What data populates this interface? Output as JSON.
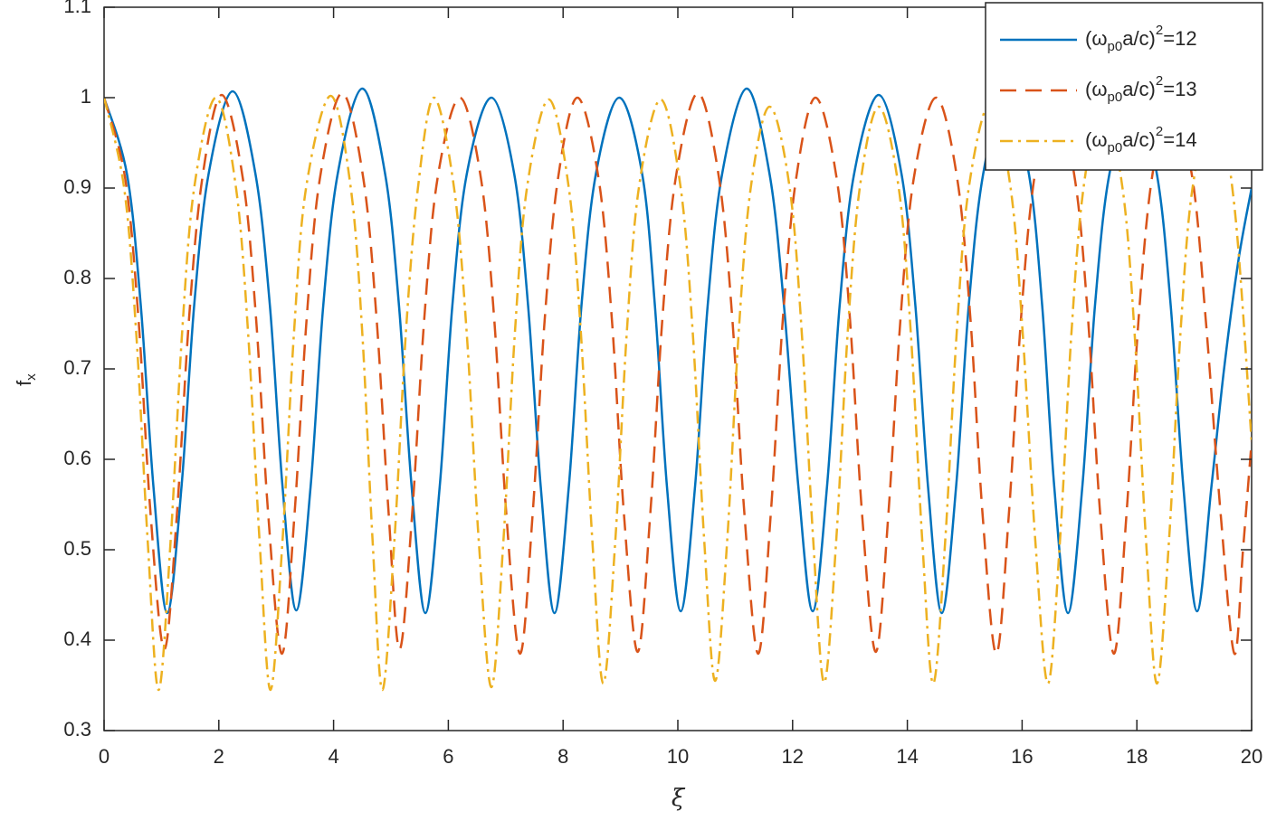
{
  "chart_data": {
    "type": "line",
    "xlabel": "ξ",
    "ylabel": {
      "base": "f",
      "sub": "x"
    },
    "xlim": [
      0,
      20
    ],
    "xticks": [
      0,
      2,
      4,
      6,
      8,
      10,
      12,
      14,
      16,
      18,
      20
    ],
    "ylim": [
      0.3,
      1.1
    ],
    "yticks": [
      0.3,
      0.4,
      0.5,
      0.6,
      0.7,
      0.8,
      0.9,
      1,
      1.1
    ],
    "grid": false,
    "legend": "top-right",
    "series": [
      {
        "name": {
          "open": "(ω",
          "sub": "p0",
          "mid": "a/c)",
          "sup": "2",
          "close": "=12"
        },
        "color": "#0072BD",
        "linestyle": "solid",
        "x": [
          0,
          0.4,
          0.64,
          0.86,
          1.1,
          1.35,
          1.57,
          1.82,
          2.24,
          2.64,
          2.89,
          3.11,
          3.35,
          3.6,
          3.82,
          4.07,
          4.5,
          4.9,
          5.14,
          5.36,
          5.6,
          5.85,
          6.07,
          6.32,
          6.75,
          7.15,
          7.39,
          7.61,
          7.85,
          8.1,
          8.32,
          8.57,
          8.98,
          9.38,
          9.6,
          9.81,
          10.05,
          10.3,
          10.52,
          10.77,
          11.2,
          11.6,
          11.85,
          12.1,
          12.35,
          12.6,
          12.82,
          13.07,
          13.5,
          13.9,
          14.14,
          14.36,
          14.6,
          14.85,
          15.07,
          15.32,
          15.72,
          16.12,
          16.35,
          16.56,
          16.8,
          17.05,
          17.27,
          17.52,
          17.95,
          18.35,
          18.59,
          18.81,
          19.05,
          19.3,
          19.52,
          19.77,
          20
        ],
        "values": [
          1,
          0.915,
          0.77,
          0.57,
          0.43,
          0.57,
          0.77,
          0.915,
          1.007,
          0.915,
          0.77,
          0.57,
          0.433,
          0.57,
          0.77,
          0.915,
          1.01,
          0.915,
          0.77,
          0.57,
          0.43,
          0.57,
          0.77,
          0.915,
          1.0,
          0.915,
          0.77,
          0.57,
          0.43,
          0.57,
          0.77,
          0.915,
          1.0,
          0.915,
          0.77,
          0.57,
          0.432,
          0.57,
          0.77,
          0.915,
          1.01,
          0.915,
          0.77,
          0.57,
          0.432,
          0.57,
          0.77,
          0.915,
          1.003,
          0.915,
          0.77,
          0.57,
          0.43,
          0.57,
          0.77,
          0.915,
          1.005,
          0.915,
          0.77,
          0.57,
          0.43,
          0.57,
          0.77,
          0.915,
          1.005,
          0.915,
          0.77,
          0.57,
          0.432,
          0.57,
          0.7,
          0.82,
          0.9
        ]
      },
      {
        "name": {
          "open": "(ω",
          "sub": "p0",
          "mid": "a/c)",
          "sup": "2",
          "close": "=13"
        },
        "color": "#D95319",
        "linestyle": "dashed",
        "x": [
          0,
          0.37,
          0.6,
          0.81,
          1.05,
          1.27,
          1.48,
          1.71,
          2.05,
          2.42,
          2.65,
          2.86,
          3.1,
          3.32,
          3.53,
          3.76,
          4.15,
          4.52,
          4.75,
          4.96,
          5.15,
          5.37,
          5.58,
          5.81,
          6.2,
          6.57,
          6.8,
          7.01,
          7.25,
          7.47,
          7.68,
          7.91,
          8.25,
          8.62,
          8.85,
          9.06,
          9.3,
          9.52,
          9.73,
          9.96,
          10.35,
          10.72,
          10.95,
          11.16,
          11.4,
          11.62,
          11.83,
          12.06,
          12.4,
          12.77,
          13.0,
          13.21,
          13.45,
          13.67,
          13.88,
          14.11,
          14.5,
          14.87,
          15.1,
          15.31,
          15.55,
          15.77,
          15.98,
          16.21,
          16.55,
          16.92,
          17.15,
          17.36,
          17.6,
          17.82,
          18.03,
          18.26,
          18.6,
          18.97,
          19.2,
          19.46,
          19.7,
          19.85,
          20
        ],
        "values": [
          1,
          0.91,
          0.755,
          0.54,
          0.39,
          0.54,
          0.755,
          0.91,
          1.003,
          0.91,
          0.755,
          0.54,
          0.385,
          0.54,
          0.755,
          0.91,
          1.005,
          0.91,
          0.755,
          0.54,
          0.39,
          0.54,
          0.755,
          0.91,
          1.0,
          0.91,
          0.755,
          0.54,
          0.385,
          0.54,
          0.755,
          0.91,
          1.0,
          0.91,
          0.755,
          0.54,
          0.387,
          0.54,
          0.755,
          0.91,
          1.005,
          0.91,
          0.755,
          0.54,
          0.385,
          0.54,
          0.755,
          0.91,
          1.0,
          0.91,
          0.755,
          0.54,
          0.387,
          0.54,
          0.755,
          0.91,
          1.0,
          0.91,
          0.755,
          0.54,
          0.385,
          0.54,
          0.755,
          0.91,
          1.0,
          0.91,
          0.755,
          0.54,
          0.385,
          0.54,
          0.755,
          0.91,
          1.0,
          0.91,
          0.755,
          0.54,
          0.385,
          0.5,
          0.62
        ]
      },
      {
        "name": {
          "open": "(ω",
          "sub": "p0",
          "mid": "a/c)",
          "sup": "2",
          "close": "=14"
        },
        "color": "#EDB120",
        "linestyle": "dashdot",
        "x": [
          0,
          0.35,
          0.56,
          0.76,
          0.95,
          1.16,
          1.36,
          1.57,
          1.95,
          2.3,
          2.51,
          2.71,
          2.9,
          3.11,
          3.31,
          3.52,
          3.95,
          4.3,
          4.5,
          4.68,
          4.85,
          5.06,
          5.26,
          5.47,
          5.75,
          6.1,
          6.32,
          6.53,
          6.75,
          6.96,
          7.16,
          7.37,
          7.75,
          8.1,
          8.31,
          8.51,
          8.7,
          8.91,
          9.11,
          9.32,
          9.7,
          10.05,
          10.26,
          10.46,
          10.65,
          10.86,
          11.06,
          11.27,
          11.6,
          11.95,
          12.16,
          12.36,
          12.55,
          12.76,
          12.96,
          13.17,
          13.5,
          13.85,
          14.06,
          14.26,
          14.45,
          14.66,
          14.86,
          15.07,
          15.45,
          15.8,
          16.01,
          16.23,
          16.45,
          16.66,
          16.86,
          17.07,
          17.4,
          17.75,
          17.96,
          18.16,
          18.35,
          18.56,
          18.76,
          18.97,
          19.35,
          19.7,
          20
        ],
        "values": [
          1,
          0.9,
          0.74,
          0.51,
          0.345,
          0.51,
          0.74,
          0.9,
          1.0,
          0.9,
          0.74,
          0.51,
          0.345,
          0.51,
          0.74,
          0.9,
          1.002,
          0.9,
          0.74,
          0.51,
          0.345,
          0.51,
          0.74,
          0.9,
          1.0,
          0.9,
          0.74,
          0.51,
          0.348,
          0.51,
          0.74,
          0.9,
          0.998,
          0.9,
          0.74,
          0.51,
          0.352,
          0.51,
          0.74,
          0.9,
          0.998,
          0.9,
          0.74,
          0.51,
          0.355,
          0.51,
          0.74,
          0.9,
          0.99,
          0.9,
          0.74,
          0.51,
          0.353,
          0.51,
          0.74,
          0.9,
          0.99,
          0.9,
          0.74,
          0.51,
          0.352,
          0.51,
          0.74,
          0.9,
          0.995,
          0.9,
          0.74,
          0.51,
          0.352,
          0.51,
          0.74,
          0.9,
          0.995,
          0.9,
          0.74,
          0.51,
          0.352,
          0.51,
          0.74,
          0.9,
          0.995,
          0.88,
          0.62
        ]
      }
    ]
  }
}
